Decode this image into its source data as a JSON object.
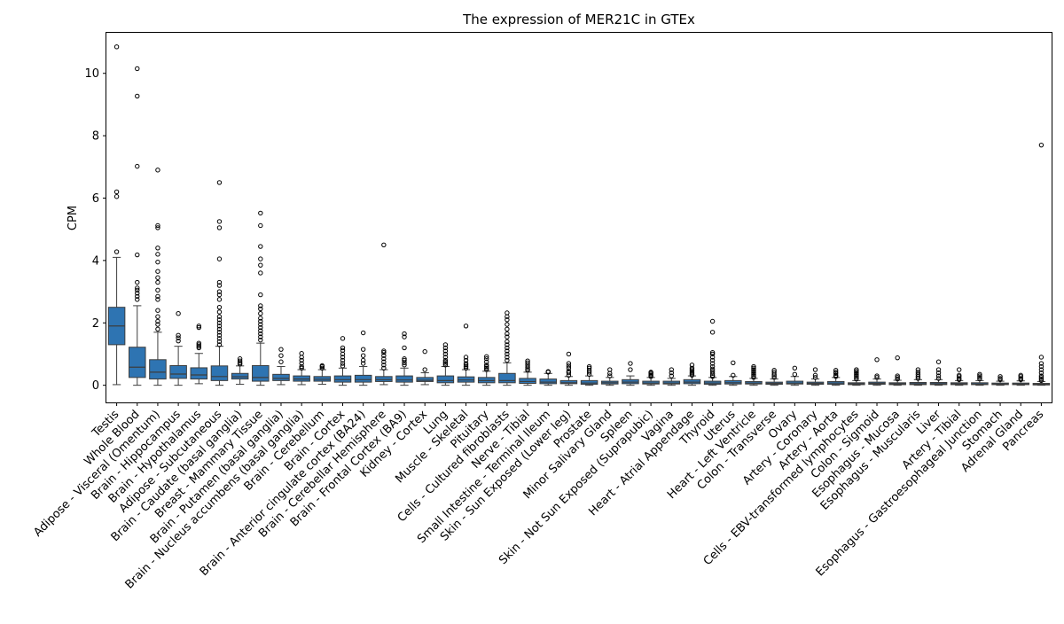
{
  "chart_data": {
    "type": "box",
    "title": "The expression of MER21C in GTEx",
    "xlabel": "",
    "ylabel": "CPM",
    "ylim": [
      -0.55,
      11.3
    ],
    "yticks": [
      0,
      2,
      4,
      6,
      8,
      10
    ],
    "grid": false,
    "legend": "none",
    "box_color": "#2e74b2",
    "categories": [
      "Testis",
      "Whole Blood",
      "Adipose - Visceral (Omentum)",
      "Brain - Hippocampus",
      "Brain - Hypothalamus",
      "Adipose - Subcutaneous",
      "Brain - Caudate (basal ganglia)",
      "Breast - Mammary Tissue",
      "Brain - Putamen (basal ganglia)",
      "Brain - Nucleus accumbens (basal ganglia)",
      "Brain - Cerebellum",
      "Brain - Cortex",
      "Brain - Anterior cingulate cortex (BA24)",
      "Brain - Cerebellar Hemisphere",
      "Brain - Frontal Cortex (BA9)",
      "Kidney - Cortex",
      "Lung",
      "Muscle - Skeletal",
      "Pituitary",
      "Cells - Cultured fibroblasts",
      "Nerve - Tibial",
      "Small Intestine - Terminal Ileum",
      "Skin - Sun Exposed (Lower leg)",
      "Prostate",
      "Minor Salivary Gland",
      "Spleen",
      "Skin - Not Sun Exposed (Suprapubic)",
      "Vagina",
      "Heart - Atrial Appendage",
      "Thyroid",
      "Uterus",
      "Heart - Left Ventricle",
      "Colon - Transverse",
      "Ovary",
      "Artery - Coronary",
      "Artery - Aorta",
      "Cells - EBV-transformed lymphocytes",
      "Colon - Sigmoid",
      "Esophagus - Mucosa",
      "Esophagus - Muscularis",
      "Liver",
      "Artery - Tibial",
      "Esophagus - Gastroesophageal Junction",
      "Stomach",
      "Adrenal Gland",
      "Pancreas"
    ],
    "boxes": [
      {
        "q1": 1.3,
        "median": 1.9,
        "q3": 2.5,
        "whislo": 0.02,
        "whishi": 4.1,
        "fliers": [
          4.28,
          6.05,
          6.2,
          10.85
        ]
      },
      {
        "q1": 0.25,
        "median": 0.58,
        "q3": 1.22,
        "whislo": 0.0,
        "whishi": 2.55,
        "fliers": [
          2.75,
          2.85,
          2.95,
          3.05,
          3.12,
          3.3,
          4.18,
          7.02,
          9.27,
          10.15
        ]
      },
      {
        "q1": 0.2,
        "median": 0.42,
        "q3": 0.82,
        "whislo": 0.0,
        "whishi": 1.7,
        "fliers": [
          1.8,
          1.95,
          2.05,
          2.2,
          2.4,
          2.75,
          2.85,
          3.05,
          3.3,
          3.45,
          3.65,
          3.95,
          4.2,
          4.4,
          5.05,
          5.12,
          6.9
        ]
      },
      {
        "q1": 0.22,
        "median": 0.36,
        "q3": 0.63,
        "whislo": 0.0,
        "whishi": 1.25,
        "fliers": [
          1.42,
          1.52,
          1.6,
          2.3
        ]
      },
      {
        "q1": 0.2,
        "median": 0.33,
        "q3": 0.56,
        "whislo": 0.05,
        "whishi": 1.02,
        "fliers": [
          1.2,
          1.25,
          1.3,
          1.35,
          1.85,
          1.9
        ]
      },
      {
        "q1": 0.15,
        "median": 0.28,
        "q3": 0.62,
        "whislo": 0.0,
        "whishi": 1.25,
        "fliers": [
          1.3,
          1.4,
          1.5,
          1.6,
          1.7,
          1.8,
          1.9,
          2.0,
          2.1,
          2.2,
          2.35,
          2.5,
          2.75,
          2.9,
          3.0,
          3.2,
          3.3,
          4.05,
          5.05,
          5.25,
          6.5
        ]
      },
      {
        "q1": 0.2,
        "median": 0.27,
        "q3": 0.38,
        "whislo": 0.03,
        "whishi": 0.62,
        "fliers": [
          0.68,
          0.72,
          0.78,
          0.85
        ]
      },
      {
        "q1": 0.13,
        "median": 0.25,
        "q3": 0.63,
        "whislo": 0.0,
        "whishi": 1.35,
        "fliers": [
          1.45,
          1.55,
          1.65,
          1.75,
          1.85,
          1.95,
          2.05,
          2.15,
          2.3,
          2.45,
          2.55,
          2.9,
          3.6,
          3.85,
          4.05,
          4.45,
          5.12,
          5.52
        ]
      },
      {
        "q1": 0.15,
        "median": 0.22,
        "q3": 0.35,
        "whislo": 0.02,
        "whishi": 0.6,
        "fliers": [
          0.75,
          0.95,
          1.15
        ]
      },
      {
        "q1": 0.13,
        "median": 0.2,
        "q3": 0.3,
        "whislo": 0.02,
        "whishi": 0.5,
        "fliers": [
          0.55,
          0.6,
          0.7,
          0.8,
          0.9,
          1.02
        ]
      },
      {
        "q1": 0.13,
        "median": 0.19,
        "q3": 0.28,
        "whislo": 0.03,
        "whishi": 0.5,
        "fliers": [
          0.55,
          0.6,
          0.63
        ]
      },
      {
        "q1": 0.1,
        "median": 0.18,
        "q3": 0.3,
        "whislo": 0.0,
        "whishi": 0.55,
        "fliers": [
          0.62,
          0.7,
          0.8,
          0.9,
          1.0,
          1.12,
          1.2,
          1.5
        ]
      },
      {
        "q1": 0.1,
        "median": 0.18,
        "q3": 0.32,
        "whislo": 0.0,
        "whishi": 0.6,
        "fliers": [
          0.7,
          0.8,
          0.95,
          1.15,
          1.68
        ]
      },
      {
        "q1": 0.12,
        "median": 0.18,
        "q3": 0.28,
        "whislo": 0.02,
        "whishi": 0.5,
        "fliers": [
          0.55,
          0.65,
          0.75,
          0.85,
          0.95,
          1.05,
          1.1,
          4.5
        ]
      },
      {
        "q1": 0.1,
        "median": 0.17,
        "q3": 0.3,
        "whislo": 0.0,
        "whishi": 0.55,
        "fliers": [
          0.65,
          0.72,
          0.8,
          0.85,
          1.2,
          1.55,
          1.65
        ]
      },
      {
        "q1": 0.12,
        "median": 0.16,
        "q3": 0.25,
        "whislo": 0.02,
        "whishi": 0.4,
        "fliers": [
          0.5,
          1.08
        ]
      },
      {
        "q1": 0.08,
        "median": 0.15,
        "q3": 0.3,
        "whislo": 0.0,
        "whishi": 0.6,
        "fliers": [
          0.65,
          0.7,
          0.75,
          0.8,
          0.9,
          1.0,
          1.1,
          1.2,
          1.3
        ]
      },
      {
        "q1": 0.1,
        "median": 0.17,
        "q3": 0.27,
        "whislo": 0.0,
        "whishi": 0.5,
        "fliers": [
          0.55,
          0.6,
          0.65,
          0.7,
          0.8,
          0.9,
          1.9
        ]
      },
      {
        "q1": 0.08,
        "median": 0.15,
        "q3": 0.25,
        "whislo": 0.0,
        "whishi": 0.45,
        "fliers": [
          0.5,
          0.55,
          0.6,
          0.65,
          0.75,
          0.85,
          0.92
        ]
      },
      {
        "q1": 0.08,
        "median": 0.15,
        "q3": 0.38,
        "whislo": 0.0,
        "whishi": 0.72,
        "fliers": [
          0.8,
          0.9,
          1.0,
          1.1,
          1.2,
          1.3,
          1.4,
          1.55,
          1.65,
          1.8,
          1.95,
          2.1,
          2.2,
          2.32
        ]
      },
      {
        "q1": 0.06,
        "median": 0.12,
        "q3": 0.22,
        "whislo": 0.0,
        "whishi": 0.42,
        "fliers": [
          0.48,
          0.52,
          0.58,
          0.65,
          0.72,
          0.78
        ]
      },
      {
        "q1": 0.05,
        "median": 0.1,
        "q3": 0.2,
        "whislo": 0.0,
        "whishi": 0.38,
        "fliers": [
          0.42,
          0.44
        ]
      },
      {
        "q1": 0.05,
        "median": 0.08,
        "q3": 0.15,
        "whislo": 0.0,
        "whishi": 0.28,
        "fliers": [
          0.32,
          0.4,
          0.45,
          0.55,
          0.62,
          0.7,
          1.0
        ]
      },
      {
        "q1": 0.03,
        "median": 0.07,
        "q3": 0.15,
        "whislo": 0.0,
        "whishi": 0.3,
        "fliers": [
          0.35,
          0.42,
          0.48,
          0.55,
          0.6
        ]
      },
      {
        "q1": 0.04,
        "median": 0.08,
        "q3": 0.13,
        "whislo": 0.0,
        "whishi": 0.25,
        "fliers": [
          0.3,
          0.38,
          0.5
        ]
      },
      {
        "q1": 0.05,
        "median": 0.1,
        "q3": 0.18,
        "whislo": 0.0,
        "whishi": 0.3,
        "fliers": [
          0.5,
          0.7
        ]
      },
      {
        "q1": 0.04,
        "median": 0.07,
        "q3": 0.13,
        "whislo": 0.0,
        "whishi": 0.25,
        "fliers": [
          0.28,
          0.32,
          0.36,
          0.4,
          0.42
        ]
      },
      {
        "q1": 0.04,
        "median": 0.07,
        "q3": 0.13,
        "whislo": 0.0,
        "whishi": 0.22,
        "fliers": [
          0.3,
          0.4,
          0.5
        ]
      },
      {
        "q1": 0.05,
        "median": 0.1,
        "q3": 0.18,
        "whislo": 0.0,
        "whishi": 0.3,
        "fliers": [
          0.32,
          0.36,
          0.4,
          0.45,
          0.5,
          0.55,
          0.65
        ]
      },
      {
        "q1": 0.03,
        "median": 0.07,
        "q3": 0.13,
        "whislo": 0.0,
        "whishi": 0.25,
        "fliers": [
          0.28,
          0.32,
          0.38,
          0.45,
          0.52,
          0.6,
          0.7,
          0.8,
          0.9,
          1.0,
          1.05,
          1.7,
          2.05
        ]
      },
      {
        "q1": 0.04,
        "median": 0.08,
        "q3": 0.15,
        "whislo": 0.0,
        "whishi": 0.28,
        "fliers": [
          0.32,
          0.72
        ]
      },
      {
        "q1": 0.04,
        "median": 0.07,
        "q3": 0.12,
        "whislo": 0.0,
        "whishi": 0.22,
        "fliers": [
          0.25,
          0.3,
          0.35,
          0.4,
          0.45,
          0.5,
          0.55,
          0.6
        ]
      },
      {
        "q1": 0.03,
        "median": 0.06,
        "q3": 0.1,
        "whislo": 0.0,
        "whishi": 0.2,
        "fliers": [
          0.25,
          0.3,
          0.35,
          0.42,
          0.48
        ]
      },
      {
        "q1": 0.04,
        "median": 0.07,
        "q3": 0.13,
        "whislo": 0.0,
        "whishi": 0.28,
        "fliers": [
          0.35,
          0.55
        ]
      },
      {
        "q1": 0.03,
        "median": 0.06,
        "q3": 0.1,
        "whislo": 0.0,
        "whishi": 0.2,
        "fliers": [
          0.25,
          0.32,
          0.5
        ]
      },
      {
        "q1": 0.03,
        "median": 0.07,
        "q3": 0.12,
        "whislo": 0.0,
        "whishi": 0.25,
        "fliers": [
          0.28,
          0.32,
          0.38,
          0.42,
          0.48
        ]
      },
      {
        "q1": 0.02,
        "median": 0.05,
        "q3": 0.08,
        "whislo": 0.0,
        "whishi": 0.15,
        "fliers": [
          0.2,
          0.25,
          0.3,
          0.35,
          0.4,
          0.45,
          0.5
        ]
      },
      {
        "q1": 0.03,
        "median": 0.06,
        "q3": 0.1,
        "whislo": 0.0,
        "whishi": 0.2,
        "fliers": [
          0.25,
          0.3,
          0.82
        ]
      },
      {
        "q1": 0.02,
        "median": 0.05,
        "q3": 0.08,
        "whislo": 0.0,
        "whishi": 0.16,
        "fliers": [
          0.2,
          0.25,
          0.3,
          0.88
        ]
      },
      {
        "q1": 0.02,
        "median": 0.05,
        "q3": 0.09,
        "whislo": 0.0,
        "whishi": 0.18,
        "fliers": [
          0.22,
          0.28,
          0.35,
          0.42,
          0.5
        ]
      },
      {
        "q1": 0.02,
        "median": 0.05,
        "q3": 0.09,
        "whislo": 0.0,
        "whishi": 0.18,
        "fliers": [
          0.22,
          0.3,
          0.4,
          0.5,
          0.75
        ]
      },
      {
        "q1": 0.02,
        "median": 0.05,
        "q3": 0.08,
        "whislo": 0.0,
        "whishi": 0.15,
        "fliers": [
          0.18,
          0.22,
          0.28,
          0.32,
          0.5
        ]
      },
      {
        "q1": 0.02,
        "median": 0.04,
        "q3": 0.08,
        "whislo": 0.0,
        "whishi": 0.15,
        "fliers": [
          0.2,
          0.25,
          0.3,
          0.35
        ]
      },
      {
        "q1": 0.02,
        "median": 0.04,
        "q3": 0.07,
        "whislo": 0.0,
        "whishi": 0.13,
        "fliers": [
          0.18,
          0.22,
          0.28
        ]
      },
      {
        "q1": 0.02,
        "median": 0.04,
        "q3": 0.07,
        "whislo": 0.0,
        "whishi": 0.14,
        "fliers": [
          0.18,
          0.22,
          0.28,
          0.32
        ]
      },
      {
        "q1": 0.01,
        "median": 0.03,
        "q3": 0.06,
        "whislo": 0.0,
        "whishi": 0.12,
        "fliers": [
          0.15,
          0.2,
          0.25,
          0.3,
          0.4,
          0.5,
          0.6,
          0.7,
          0.9,
          7.7
        ]
      }
    ]
  }
}
